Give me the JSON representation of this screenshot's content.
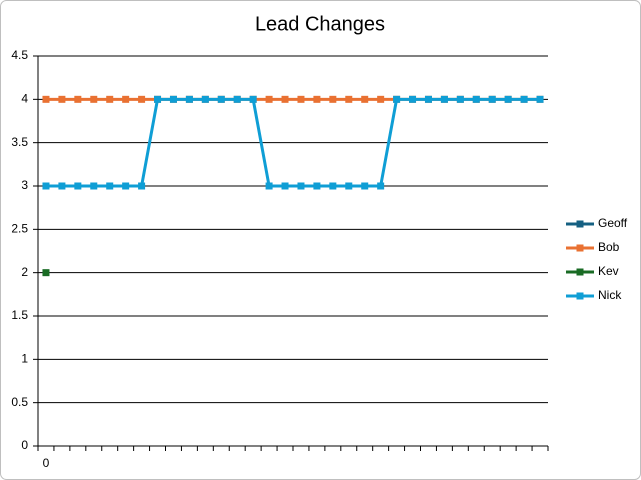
{
  "chart_data": {
    "type": "line",
    "title": "Lead Changes",
    "categories": [
      "0",
      null,
      null,
      null,
      null,
      null,
      null,
      null,
      null,
      null,
      null,
      null,
      null,
      null,
      null,
      null,
      null,
      null,
      null,
      null,
      null,
      null,
      null,
      null,
      null,
      null,
      null,
      null,
      null,
      null,
      null,
      null
    ],
    "series": [
      {
        "name": "Geoff",
        "color": "#156082",
        "values": [
          null,
          null,
          null,
          null,
          null,
          null,
          null,
          null,
          null,
          null,
          null,
          null,
          null,
          null,
          null,
          null,
          null,
          null,
          null,
          null,
          null,
          null,
          null,
          null,
          null,
          null,
          null,
          null,
          null,
          null,
          null,
          null
        ]
      },
      {
        "name": "Bob",
        "color": "#e97132",
        "values": [
          4,
          4,
          4,
          4,
          4,
          4,
          4,
          4,
          4,
          4,
          4,
          4,
          4,
          4,
          4,
          4,
          4,
          4,
          4,
          4,
          4,
          4,
          4,
          4,
          4,
          4,
          4,
          4,
          4,
          4,
          4,
          4
        ]
      },
      {
        "name": "Kev",
        "color": "#196b24",
        "values": [
          2,
          null,
          null,
          null,
          null,
          null,
          null,
          null,
          null,
          null,
          null,
          null,
          null,
          null,
          null,
          null,
          null,
          null,
          null,
          null,
          null,
          null,
          null,
          null,
          null,
          null,
          null,
          null,
          null,
          null,
          null,
          null
        ]
      },
      {
        "name": "Nick",
        "color": "#0f9ed5",
        "values": [
          3,
          3,
          3,
          3,
          3,
          3,
          3,
          4,
          4,
          4,
          4,
          4,
          4,
          4,
          3,
          3,
          3,
          3,
          3,
          3,
          3,
          3,
          4,
          4,
          4,
          4,
          4,
          4,
          4,
          4,
          4,
          4
        ]
      }
    ],
    "ylim": [
      0,
      4.5
    ],
    "yticks": [
      0,
      0.5,
      1,
      1.5,
      2,
      2.5,
      3,
      3.5,
      4,
      4.5
    ],
    "grid": true,
    "legend": "right"
  }
}
